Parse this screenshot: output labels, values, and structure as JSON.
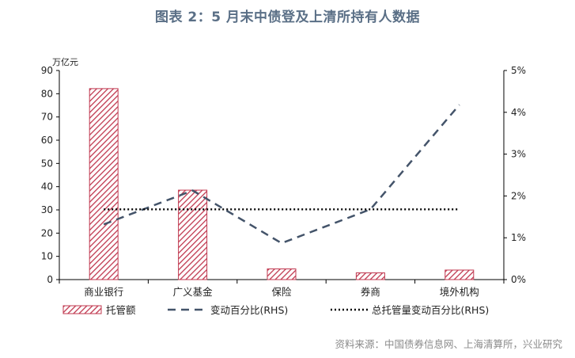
{
  "title": "图表 2：5 月末中债登及上清所持有人数据",
  "source": "资料来源：中国债券信息网、上海清算所，兴业研究",
  "chart_data": {
    "type": "bar",
    "categories": [
      "商业银行",
      "广义基金",
      "保险",
      "券商",
      "境外机构"
    ],
    "left_unit": "万亿元",
    "ylim": [
      0,
      90
    ],
    "y_ticks": [
      0,
      10,
      20,
      30,
      40,
      50,
      60,
      70,
      80,
      90
    ],
    "y2lim": [
      0,
      5
    ],
    "y2_ticks": [
      "0%",
      "1%",
      "2%",
      "3%",
      "4%",
      "5%"
    ],
    "series": [
      {
        "name": "托管额",
        "type": "bar",
        "axis": "left",
        "values": [
          82.2,
          38.5,
          4.6,
          2.9,
          4.1
        ],
        "color": "#c0384f"
      },
      {
        "name": "变动百分比(RHS)",
        "type": "line",
        "style": "dashed",
        "axis": "right",
        "values": [
          1.32,
          2.13,
          0.87,
          1.68,
          4.18
        ],
        "color": "#44546a"
      },
      {
        "name": "总托管量变动百分比(RHS)",
        "type": "line",
        "style": "dotted",
        "axis": "right",
        "values": [
          1.68,
          1.68,
          1.68,
          1.68,
          1.68
        ],
        "color": "#000000"
      }
    ],
    "legend_position": "bottom"
  }
}
